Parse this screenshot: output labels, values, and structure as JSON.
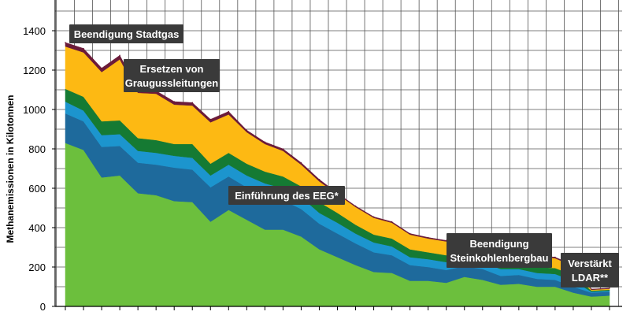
{
  "chart_data": {
    "type": "area",
    "stacked": true,
    "ylabel": "Methanemissionen in Kilotonnen",
    "ylim": [
      0,
      1500
    ],
    "yticks": [
      0,
      200,
      400,
      600,
      800,
      1000,
      1200,
      1400
    ],
    "grid": true,
    "points_count": 31,
    "series": [
      {
        "color": "#6cbf3d",
        "values": [
          830,
          795,
          655,
          665,
          575,
          565,
          535,
          530,
          430,
          490,
          440,
          390,
          390,
          355,
          290,
          250,
          210,
          175,
          170,
          130,
          130,
          120,
          150,
          135,
          110,
          115,
          100,
          100,
          70,
          50,
          55
        ]
      },
      {
        "color": "#1e6a9c",
        "values": [
          150,
          145,
          155,
          150,
          155,
          155,
          170,
          165,
          175,
          170,
          165,
          175,
          150,
          140,
          130,
          120,
          110,
          100,
          90,
          80,
          70,
          65,
          55,
          55,
          45,
          45,
          40,
          35,
          30,
          20,
          20
        ]
      },
      {
        "color": "#1c95ce",
        "values": [
          60,
          55,
          60,
          60,
          60,
          60,
          60,
          60,
          60,
          60,
          60,
          60,
          60,
          60,
          55,
          55,
          50,
          50,
          45,
          40,
          40,
          40,
          35,
          35,
          35,
          30,
          30,
          30,
          30,
          5,
          5
        ]
      },
      {
        "color": "#157a33",
        "values": [
          65,
          70,
          70,
          70,
          65,
          65,
          60,
          70,
          60,
          60,
          60,
          60,
          60,
          55,
          55,
          50,
          45,
          40,
          40,
          40,
          35,
          35,
          35,
          35,
          30,
          30,
          30,
          30,
          30,
          5,
          5
        ]
      },
      {
        "color": "#fdb913",
        "values": [
          215,
          225,
          250,
          310,
          230,
          235,
          200,
          195,
          210,
          195,
          160,
          140,
          130,
          110,
          105,
          95,
          90,
          85,
          80,
          75,
          70,
          70,
          70,
          65,
          60,
          55,
          55,
          50,
          45,
          5,
          5
        ]
      },
      {
        "color": "#6b1b3a",
        "values": [
          20,
          20,
          20,
          20,
          15,
          15,
          15,
          15,
          15,
          15,
          10,
          10,
          10,
          10,
          10,
          5,
          5,
          5,
          5,
          5,
          5,
          5,
          5,
          5,
          5,
          5,
          5,
          5,
          5,
          3,
          3
        ]
      }
    ],
    "annotations": [
      {
        "text": "Beendigung Stadtgas"
      },
      {
        "text": "Ersetzen von\nGraugussleitungen"
      },
      {
        "text": "Einführung des EEG*"
      },
      {
        "text": "Beendigung\nSteinkohlenbergbau"
      },
      {
        "text": "Verstärkt\nLDAR**"
      }
    ]
  }
}
